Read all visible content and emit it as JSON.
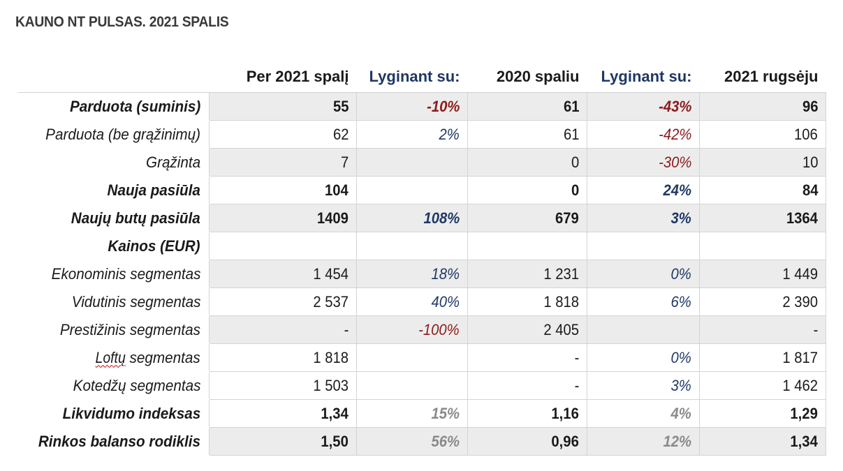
{
  "title": "KAUNO NT PULSAS. 2021 SPALIS",
  "headers": [
    "",
    "Per 2021 spalį",
    "Lyginant su:",
    "2020 spaliu",
    "Lyginant su:",
    "2021 rugsėju"
  ],
  "rows": [
    {
      "label": "Parduota (suminis)",
      "bold": true,
      "shade": true,
      "cells": [
        {
          "v": "55"
        },
        {
          "v": "-10%",
          "c": "neg"
        },
        {
          "v": "61"
        },
        {
          "v": "-43%",
          "c": "neg"
        },
        {
          "v": "96"
        }
      ]
    },
    {
      "label": "Parduota (be grąžinimų)",
      "bold": false,
      "shade": false,
      "cells": [
        {
          "v": "62"
        },
        {
          "v": "2%",
          "c": "pos"
        },
        {
          "v": "61"
        },
        {
          "v": "-42%",
          "c": "neg"
        },
        {
          "v": "106"
        }
      ]
    },
    {
      "label": "Grąžinta",
      "bold": false,
      "shade": true,
      "cells": [
        {
          "v": "7"
        },
        {
          "v": ""
        },
        {
          "v": "0"
        },
        {
          "v": "-30%",
          "c": "neg"
        },
        {
          "v": "10"
        }
      ]
    },
    {
      "label": "Nauja pasiūla",
      "bold": true,
      "shade": false,
      "cells": [
        {
          "v": "104"
        },
        {
          "v": ""
        },
        {
          "v": "0"
        },
        {
          "v": "24%",
          "c": "pos"
        },
        {
          "v": "84"
        }
      ]
    },
    {
      "label": "Naujų butų pasiūla",
      "bold": true,
      "shade": true,
      "cells": [
        {
          "v": "1409"
        },
        {
          "v": "108%",
          "c": "pos"
        },
        {
          "v": "679"
        },
        {
          "v": "3%",
          "c": "pos"
        },
        {
          "v": "1364"
        }
      ]
    },
    {
      "label": "Kainos (EUR)",
      "bold": true,
      "shade": false,
      "cells": [
        {
          "v": ""
        },
        {
          "v": ""
        },
        {
          "v": ""
        },
        {
          "v": ""
        },
        {
          "v": ""
        }
      ]
    },
    {
      "label": "Ekonominis segmentas",
      "bold": false,
      "shade": true,
      "cells": [
        {
          "v": "1 454"
        },
        {
          "v": "18%",
          "c": "pos"
        },
        {
          "v": "1 231"
        },
        {
          "v": "0%",
          "c": "pos"
        },
        {
          "v": "1 449"
        }
      ]
    },
    {
      "label": "Vidutinis segmentas",
      "bold": false,
      "shade": false,
      "cells": [
        {
          "v": "2 537"
        },
        {
          "v": "40%",
          "c": "pos"
        },
        {
          "v": "1 818"
        },
        {
          "v": "6%",
          "c": "pos"
        },
        {
          "v": "2 390"
        }
      ]
    },
    {
      "label": "Prestižinis segmentas",
      "bold": false,
      "shade": true,
      "cells": [
        {
          "v": "-"
        },
        {
          "v": "-100%",
          "c": "neg"
        },
        {
          "v": "2 405"
        },
        {
          "v": ""
        },
        {
          "v": "-"
        }
      ]
    },
    {
      "label": "Loftų segmentas",
      "bold": false,
      "shade": false,
      "squiggle": "Loftų",
      "cells": [
        {
          "v": "1 818"
        },
        {
          "v": ""
        },
        {
          "v": "-"
        },
        {
          "v": "0%",
          "c": "pos"
        },
        {
          "v": "1 817"
        }
      ]
    },
    {
      "label": "Kotedžų segmentas",
      "bold": false,
      "shade": false,
      "cells": [
        {
          "v": "1 503"
        },
        {
          "v": ""
        },
        {
          "v": "-"
        },
        {
          "v": "3%",
          "c": "pos"
        },
        {
          "v": "1 462"
        }
      ]
    },
    {
      "label": "Likvidumo indeksas",
      "bold": true,
      "shade": false,
      "cells": [
        {
          "v": "1,34"
        },
        {
          "v": "15%",
          "c": "grey"
        },
        {
          "v": "1,16"
        },
        {
          "v": "4%",
          "c": "grey"
        },
        {
          "v": "1,29"
        }
      ]
    },
    {
      "label": "Rinkos balanso rodiklis",
      "bold": true,
      "shade": true,
      "cells": [
        {
          "v": "1,50"
        },
        {
          "v": "56%",
          "c": "grey"
        },
        {
          "v": "0,96"
        },
        {
          "v": "12%",
          "c": "grey"
        },
        {
          "v": "1,34"
        }
      ]
    }
  ]
}
